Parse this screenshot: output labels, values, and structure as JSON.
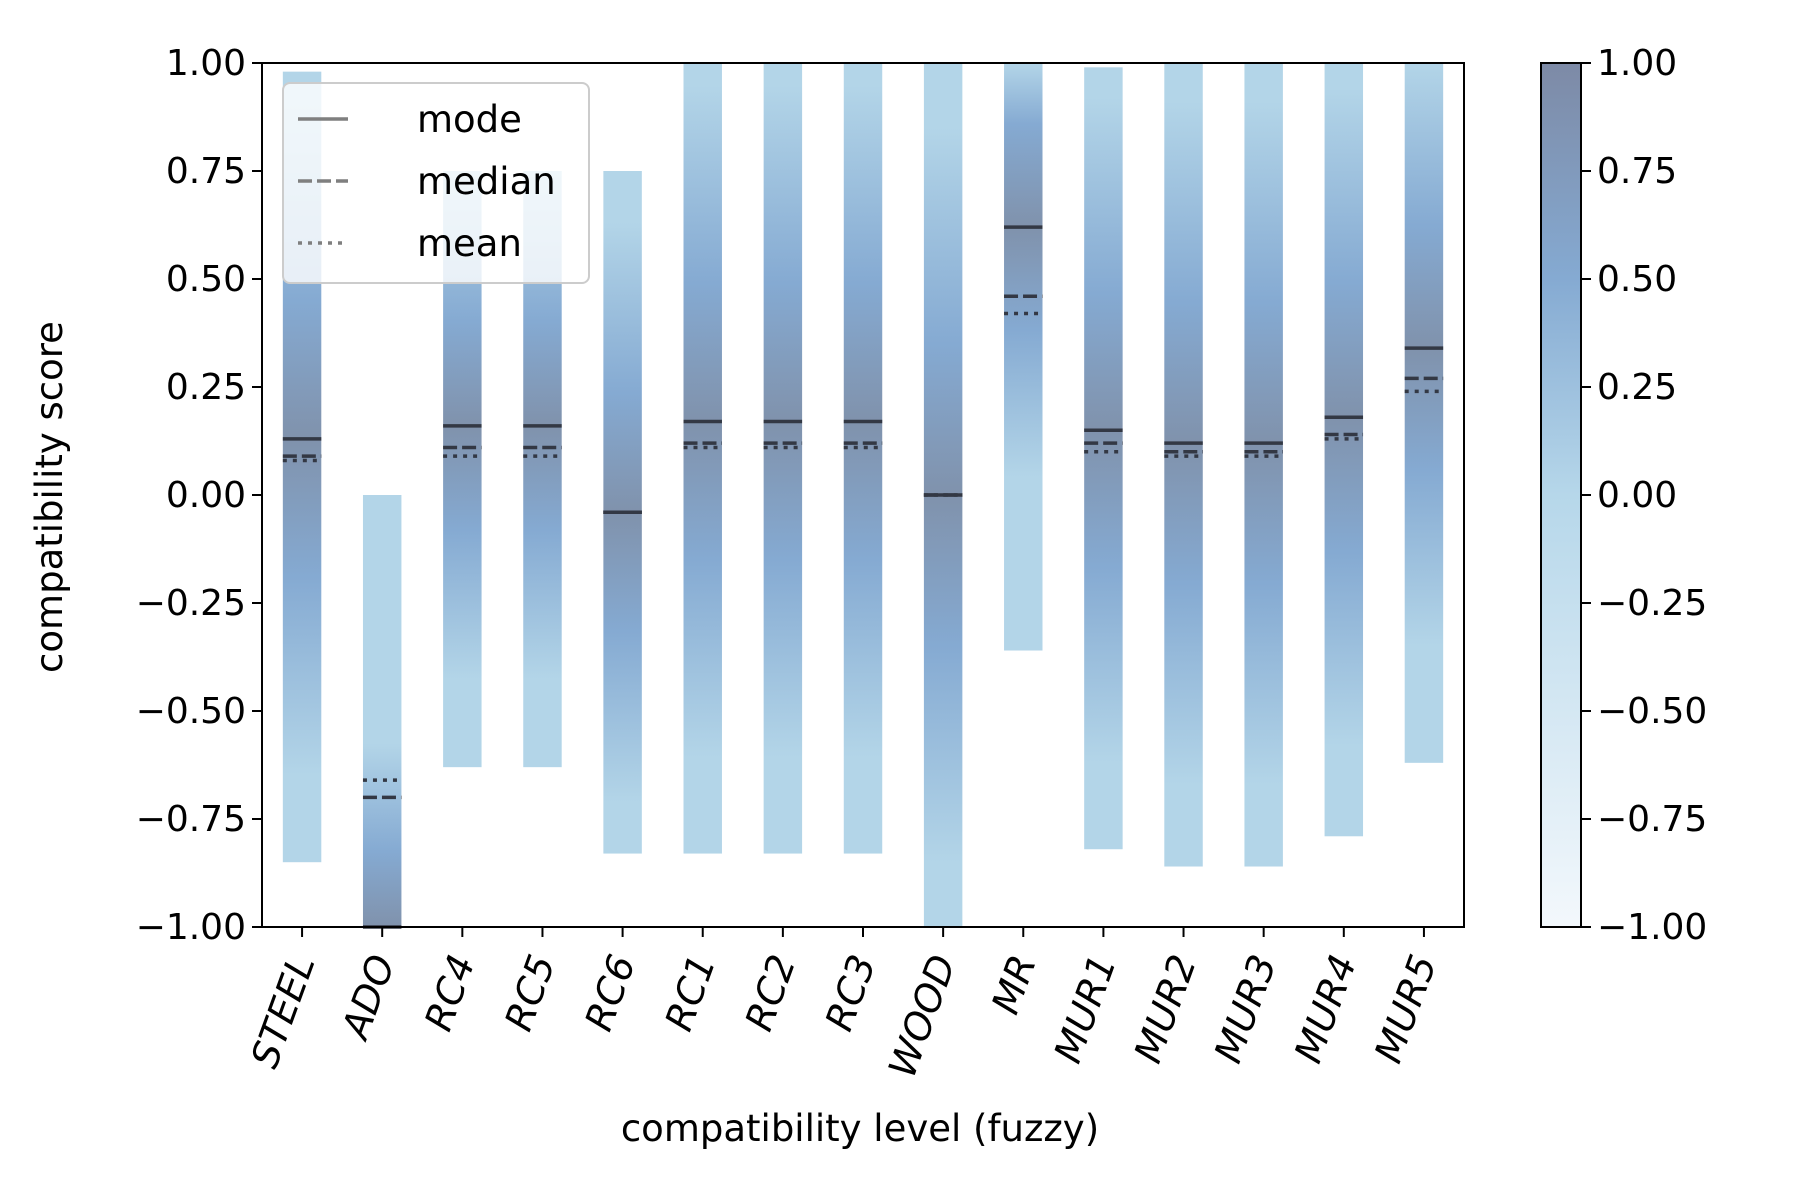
{
  "chart_data": {
    "type": "bar",
    "title": "",
    "xlabel": "compatibility level (fuzzy)",
    "ylabel": "compatibility score",
    "ylim": [
      -1.0,
      1.0
    ],
    "yticks": [
      "1.00",
      "0.75",
      "0.50",
      "0.25",
      "0.00",
      "−0.25",
      "−0.50",
      "−0.75",
      "−1.00"
    ],
    "legend": {
      "position": "top-left",
      "entries": [
        {
          "label": "mode",
          "style": "solid"
        },
        {
          "label": "median",
          "style": "dashed"
        },
        {
          "label": "mean",
          "style": "dotted"
        }
      ]
    },
    "colorbar": {
      "range": [
        -1.0,
        1.0
      ],
      "ticks": [
        "1.00",
        "0.75",
        "0.50",
        "0.25",
        "0.00",
        "−0.25",
        "−0.50",
        "−0.75",
        "−1.00"
      ]
    },
    "categories": [
      "STEEL",
      "ADO",
      "RC4",
      "RC5",
      "RC6",
      "RC1",
      "RC2",
      "RC3",
      "WOOD",
      "MR",
      "MUR1",
      "MUR2",
      "MUR3",
      "MUR4",
      "MUR5"
    ],
    "bars": [
      {
        "name": "STEEL",
        "low": -0.85,
        "high": 0.98,
        "mode": 0.13,
        "median": 0.09,
        "mean": 0.08
      },
      {
        "name": "ADO",
        "low": -1.0,
        "high": 0.0,
        "mode": -1.0,
        "median": -0.7,
        "mean": -0.66
      },
      {
        "name": "RC4",
        "low": -0.63,
        "high": 0.75,
        "mode": 0.16,
        "median": 0.11,
        "mean": 0.09
      },
      {
        "name": "RC5",
        "low": -0.63,
        "high": 0.75,
        "mode": 0.16,
        "median": 0.11,
        "mean": 0.09
      },
      {
        "name": "RC6",
        "low": -0.83,
        "high": 0.75,
        "mode": -0.04,
        "median": -0.04,
        "mean": -0.04
      },
      {
        "name": "RC1",
        "low": -0.83,
        "high": 1.0,
        "mode": 0.17,
        "median": 0.12,
        "mean": 0.11
      },
      {
        "name": "RC2",
        "low": -0.83,
        "high": 1.0,
        "mode": 0.17,
        "median": 0.12,
        "mean": 0.11
      },
      {
        "name": "RC3",
        "low": -0.83,
        "high": 1.0,
        "mode": 0.17,
        "median": 0.12,
        "mean": 0.11
      },
      {
        "name": "WOOD",
        "low": -1.0,
        "high": 1.0,
        "mode": 0.0,
        "median": 0.0,
        "mean": 0.0
      },
      {
        "name": "MR",
        "low": -0.36,
        "high": 1.0,
        "mode": 0.62,
        "median": 0.46,
        "mean": 0.42
      },
      {
        "name": "MUR1",
        "low": -0.82,
        "high": 0.99,
        "mode": 0.15,
        "median": 0.12,
        "mean": 0.1
      },
      {
        "name": "MUR2",
        "low": -0.86,
        "high": 1.0,
        "mode": 0.12,
        "median": 0.1,
        "mean": 0.09
      },
      {
        "name": "MUR3",
        "low": -0.86,
        "high": 1.0,
        "mode": 0.12,
        "median": 0.1,
        "mean": 0.09
      },
      {
        "name": "MUR4",
        "low": -0.79,
        "high": 1.0,
        "mode": 0.18,
        "median": 0.14,
        "mean": 0.13
      },
      {
        "name": "MUR5",
        "low": -0.62,
        "high": 1.0,
        "mode": 0.34,
        "median": 0.27,
        "mean": 0.24
      }
    ],
    "colors": {
      "light": "#b3d5e8",
      "mid": "#85aad2",
      "dark": "#8092ac",
      "stat_line": "#333844",
      "colorbar_bottom": "#f3f8fc",
      "colorbar_top": "#7d8aa6"
    }
  }
}
